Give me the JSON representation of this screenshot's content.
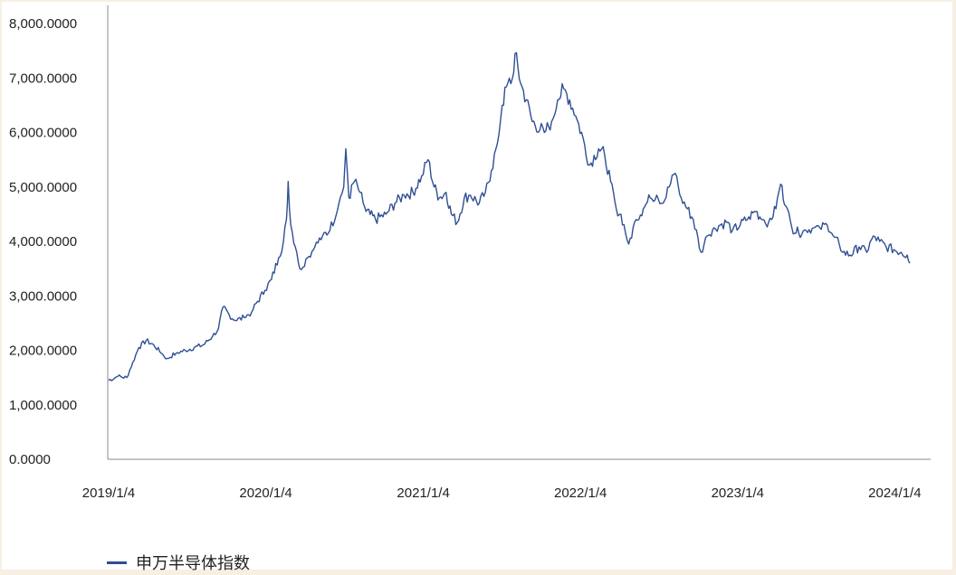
{
  "chart_data": {
    "type": "line",
    "title": "",
    "xlabel": "",
    "ylabel": "",
    "ylim": [
      0,
      8000
    ],
    "y_ticks": [
      "0.0000",
      "1,000.0000",
      "2,000.0000",
      "3,000.0000",
      "4,000.0000",
      "5,000.0000",
      "6,000.0000",
      "7,000.0000",
      "8,000.0000"
    ],
    "x_ticks": [
      "2019/1/4",
      "2020/1/4",
      "2021/1/4",
      "2022/1/4",
      "2023/1/4",
      "2024/1/4"
    ],
    "x_range": [
      "2019-01-04",
      "2024-02-08"
    ],
    "grid": false,
    "legend_position": "bottom-left",
    "series": [
      {
        "name": "申万半导体指数",
        "color": "#2f4f93",
        "points": [
          [
            "2019-01-04",
            1450
          ],
          [
            "2019-01-25",
            1520
          ],
          [
            "2019-02-15",
            1500
          ],
          [
            "2019-03-01",
            1780
          ],
          [
            "2019-03-15",
            2050
          ],
          [
            "2019-04-01",
            2180
          ],
          [
            "2019-04-19",
            2100
          ],
          [
            "2019-05-06",
            1950
          ],
          [
            "2019-05-20",
            1850
          ],
          [
            "2019-06-10",
            1950
          ],
          [
            "2019-07-01",
            2000
          ],
          [
            "2019-07-22",
            2050
          ],
          [
            "2019-08-12",
            2100
          ],
          [
            "2019-09-02",
            2250
          ],
          [
            "2019-09-16",
            2400
          ],
          [
            "2019-09-27",
            2800
          ],
          [
            "2019-10-11",
            2650
          ],
          [
            "2019-10-25",
            2550
          ],
          [
            "2019-11-15",
            2600
          ],
          [
            "2019-12-02",
            2700
          ],
          [
            "2019-12-16",
            2900
          ],
          [
            "2020-01-02",
            3100
          ],
          [
            "2020-01-17",
            3300
          ],
          [
            "2020-02-03",
            3700
          ],
          [
            "2020-02-14",
            4000
          ],
          [
            "2020-02-21",
            4400
          ],
          [
            "2020-02-25",
            5100
          ],
          [
            "2020-03-02",
            4300
          ],
          [
            "2020-03-16",
            3800
          ],
          [
            "2020-03-23",
            3500
          ],
          [
            "2020-04-10",
            3700
          ],
          [
            "2020-04-27",
            3900
          ],
          [
            "2020-05-15",
            4100
          ],
          [
            "2020-06-01",
            4200
          ],
          [
            "2020-06-22",
            4700
          ],
          [
            "2020-07-03",
            5000
          ],
          [
            "2020-07-08",
            5700
          ],
          [
            "2020-07-15",
            4800
          ],
          [
            "2020-07-28",
            5100
          ],
          [
            "2020-08-10",
            4900
          ],
          [
            "2020-08-24",
            4550
          ],
          [
            "2020-09-15",
            4400
          ],
          [
            "2020-10-09",
            4500
          ],
          [
            "2020-10-30",
            4700
          ],
          [
            "2020-11-20",
            4850
          ],
          [
            "2020-12-11",
            4900
          ],
          [
            "2020-12-31",
            5200
          ],
          [
            "2021-01-15",
            5500
          ],
          [
            "2021-01-29",
            5000
          ],
          [
            "2021-02-10",
            4800
          ],
          [
            "2021-02-26",
            4900
          ],
          [
            "2021-03-10",
            4500
          ],
          [
            "2021-03-24",
            4350
          ],
          [
            "2021-04-09",
            4800
          ],
          [
            "2021-04-23",
            4850
          ],
          [
            "2021-05-14",
            4700
          ],
          [
            "2021-05-28",
            4900
          ],
          [
            "2021-06-11",
            5300
          ],
          [
            "2021-06-25",
            5800
          ],
          [
            "2021-07-06",
            6500
          ],
          [
            "2021-07-19",
            6900
          ],
          [
            "2021-07-30",
            7000
          ],
          [
            "2021-08-05",
            7450
          ],
          [
            "2021-08-18",
            6900
          ],
          [
            "2021-08-31",
            6600
          ],
          [
            "2021-09-14",
            6200
          ],
          [
            "2021-10-12",
            6000
          ],
          [
            "2021-10-29",
            6200
          ],
          [
            "2021-11-12",
            6600
          ],
          [
            "2021-11-26",
            6800
          ],
          [
            "2021-12-10",
            6600
          ],
          [
            "2021-12-24",
            6300
          ],
          [
            "2022-01-10",
            5900
          ],
          [
            "2022-01-25",
            5400
          ],
          [
            "2022-02-15",
            5700
          ],
          [
            "2022-03-01",
            5600
          ],
          [
            "2022-03-15",
            5100
          ],
          [
            "2022-03-28",
            4600
          ],
          [
            "2022-04-08",
            4500
          ],
          [
            "2022-04-26",
            3950
          ],
          [
            "2022-05-13",
            4400
          ],
          [
            "2022-05-30",
            4600
          ],
          [
            "2022-06-15",
            4800
          ],
          [
            "2022-06-30",
            4850
          ],
          [
            "2022-07-15",
            4700
          ],
          [
            "2022-07-29",
            5000
          ],
          [
            "2022-08-12",
            5250
          ],
          [
            "2022-08-26",
            4800
          ],
          [
            "2022-09-09",
            4600
          ],
          [
            "2022-09-23",
            4400
          ],
          [
            "2022-10-11",
            3800
          ],
          [
            "2022-10-25",
            4100
          ],
          [
            "2022-11-10",
            4250
          ],
          [
            "2022-11-25",
            4300
          ],
          [
            "2022-12-09",
            4350
          ],
          [
            "2022-12-23",
            4200
          ],
          [
            "2023-01-10",
            4300
          ],
          [
            "2023-01-30",
            4450
          ],
          [
            "2023-02-15",
            4550
          ],
          [
            "2023-03-03",
            4400
          ],
          [
            "2023-03-17",
            4350
          ],
          [
            "2023-04-03",
            4600
          ],
          [
            "2023-04-14",
            5050
          ],
          [
            "2023-04-26",
            4650
          ],
          [
            "2023-05-10",
            4250
          ],
          [
            "2023-05-26",
            4150
          ],
          [
            "2023-06-12",
            4200
          ],
          [
            "2023-06-30",
            4250
          ],
          [
            "2023-07-14",
            4250
          ],
          [
            "2023-07-31",
            4300
          ],
          [
            "2023-08-14",
            4100
          ],
          [
            "2023-08-28",
            3950
          ],
          [
            "2023-09-05",
            3800
          ],
          [
            "2023-09-22",
            3750
          ],
          [
            "2023-10-13",
            3900
          ],
          [
            "2023-10-31",
            3800
          ],
          [
            "2023-11-15",
            4100
          ],
          [
            "2023-11-30",
            4000
          ],
          [
            "2023-12-15",
            3900
          ],
          [
            "2024-01-02",
            3850
          ],
          [
            "2024-01-19",
            3800
          ],
          [
            "2024-02-02",
            3750
          ],
          [
            "2024-02-08",
            3600
          ]
        ]
      }
    ]
  }
}
